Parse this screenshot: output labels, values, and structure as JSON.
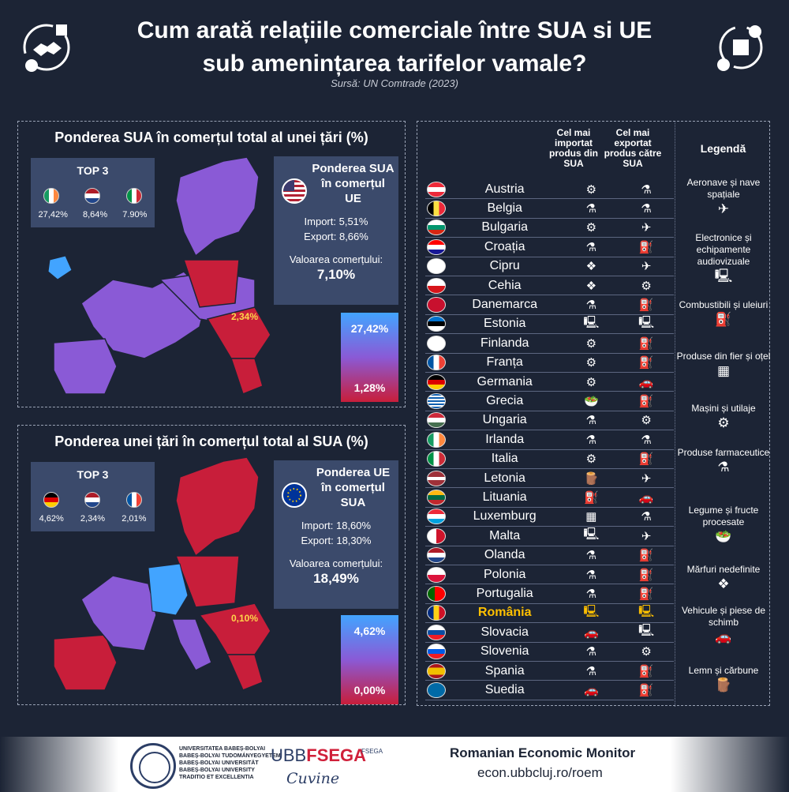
{
  "header": {
    "title_line1": "Cum arată relațiile comerciale  între SUA si UE",
    "title_line2": "sub amenințarea tarifelor vamale?",
    "source": "Sursă: UN Comtrade (2023)"
  },
  "panel1": {
    "title": "Ponderea SUA în comerțul total al unei țări (%)",
    "top3_title": "TOP 3",
    "top3": [
      {
        "country": "Irlanda",
        "value": "27,42%",
        "flag": "ie"
      },
      {
        "country": "Olanda",
        "value": "8,64%",
        "flag": "nl"
      },
      {
        "country": "Italia",
        "value": "7.90%",
        "flag": "it"
      }
    ],
    "box_title": "Ponderea SUA în comerțul UE",
    "import": "Import: 5,51%",
    "export": "Export: 8,66%",
    "trade_label": "Valoarea comerțului:",
    "trade_value": "7,10%",
    "scale_max": "27,42%",
    "scale_min": "1,28%",
    "map_label": "2,34%"
  },
  "panel2": {
    "title": "Ponderea unei țări în comerțul total al SUA (%)",
    "top3_title": "TOP 3",
    "top3": [
      {
        "country": "Germania",
        "value": "4,62%",
        "flag": "de"
      },
      {
        "country": "Olanda",
        "value": "2,34%",
        "flag": "nl"
      },
      {
        "country": "Franța",
        "value": "2,01%",
        "flag": "fr"
      }
    ],
    "box_title": "Ponderea UE în comerțul SUA",
    "import": "Import: 18,60%",
    "export": "Export: 18,30%",
    "trade_label": "Valoarea comerțului:",
    "trade_value": "18,49%",
    "scale_max": "4,62%",
    "scale_min": "0,00%",
    "map_label": "0,10%"
  },
  "table": {
    "col1_header": "Cel mai importat produs din SUA",
    "col2_header": "Cel mai exportat produs către SUA",
    "rows": [
      {
        "country": "Austria",
        "flag": "at",
        "import": "machinery",
        "export": "pharma"
      },
      {
        "country": "Belgia",
        "flag": "be",
        "import": "pharma",
        "export": "pharma"
      },
      {
        "country": "Bulgaria",
        "flag": "bg",
        "import": "machinery",
        "export": "aircraft"
      },
      {
        "country": "Croația",
        "flag": "hr",
        "import": "pharma",
        "export": "fuel"
      },
      {
        "country": "Cipru",
        "flag": "cy",
        "import": "undefined",
        "export": "aircraft"
      },
      {
        "country": "Cehia",
        "flag": "cz",
        "import": "undefined",
        "export": "machinery"
      },
      {
        "country": "Danemarca",
        "flag": "dk",
        "import": "pharma",
        "export": "fuel"
      },
      {
        "country": "Estonia",
        "flag": "ee",
        "import": "electronics",
        "export": "electronics"
      },
      {
        "country": "Finlanda",
        "flag": "fi",
        "import": "machinery",
        "export": "fuel"
      },
      {
        "country": "Franța",
        "flag": "fr",
        "import": "machinery",
        "export": "fuel"
      },
      {
        "country": "Germania",
        "flag": "de",
        "import": "machinery",
        "export": "vehicles"
      },
      {
        "country": "Grecia",
        "flag": "gr",
        "import": "food",
        "export": "fuel"
      },
      {
        "country": "Ungaria",
        "flag": "hu",
        "import": "pharma",
        "export": "machinery"
      },
      {
        "country": "Irlanda",
        "flag": "ie",
        "import": "pharma",
        "export": "pharma"
      },
      {
        "country": "Italia",
        "flag": "it",
        "import": "machinery",
        "export": "fuel"
      },
      {
        "country": "Letonia",
        "flag": "lv",
        "import": "wood",
        "export": "aircraft"
      },
      {
        "country": "Lituania",
        "flag": "lt",
        "import": "fuel",
        "export": "vehicles"
      },
      {
        "country": "Luxemburg",
        "flag": "lu",
        "import": "iron",
        "export": "pharma"
      },
      {
        "country": "Malta",
        "flag": "mt",
        "import": "electronics",
        "export": "aircraft"
      },
      {
        "country": "Olanda",
        "flag": "nl",
        "import": "pharma",
        "export": "fuel"
      },
      {
        "country": "Polonia",
        "flag": "pl",
        "import": "pharma",
        "export": "fuel"
      },
      {
        "country": "Portugalia",
        "flag": "pt",
        "import": "pharma",
        "export": "fuel"
      },
      {
        "country": "România",
        "flag": "ro",
        "import": "electronics",
        "export": "electronics"
      },
      {
        "country": "Slovacia",
        "flag": "sk",
        "import": "vehicles",
        "export": "electronics"
      },
      {
        "country": "Slovenia",
        "flag": "si",
        "import": "pharma",
        "export": "machinery"
      },
      {
        "country": "Spania",
        "flag": "es",
        "import": "pharma",
        "export": "fuel"
      },
      {
        "country": "Suedia",
        "flag": "se",
        "import": "vehicles",
        "export": "fuel"
      }
    ]
  },
  "legend": {
    "title": "Legendă",
    "items": [
      {
        "label": "Aeronave și nave spațiale",
        "icon": "aircraft"
      },
      {
        "label": "Electronice și echipamente audiovizuale",
        "icon": "electronics"
      },
      {
        "label": "Combustibili și uleiuri",
        "icon": "fuel"
      },
      {
        "label": "Produse din fier și oțel",
        "icon": "iron"
      },
      {
        "label": "Mașini și utilaje",
        "icon": "machinery"
      },
      {
        "label": "Produse farmaceutice",
        "icon": "pharma"
      },
      {
        "label": "Legume și fructe procesate",
        "icon": "food"
      },
      {
        "label": "Mărfuri nedefinite",
        "icon": "undefined"
      },
      {
        "label": "Vehicule și piese de schimb",
        "icon": "vehicles"
      },
      {
        "label": "Lemn și cărbune",
        "icon": "wood"
      }
    ]
  },
  "footer": {
    "univ_lines": [
      "UNIVERSITATEA BABEȘ-BOLYAI",
      "BABEȘ-BOLYAI TUDOMÁNYEGYETEM",
      "BABEȘ-BOLYAI UNIVERSITÄT",
      "BABEȘ-BOLYAI UNIVERSITY",
      "TRADITIO ET EXCELLENTIA"
    ],
    "fsega_a": "UBB",
    "fsega_b": "FSEGA",
    "fsega_sub": "FSEGA",
    "signature": "Cuvine",
    "remon": "Romanian Economic Monitor",
    "url": "econ.ubbcluj.ro/roem"
  },
  "colors": {
    "background": "#1c2435",
    "box": "#3b4a6b",
    "purple": "#8a5ad6",
    "red": "#c81e3a",
    "blue": "#42a4ff",
    "highlight": "#ffc000"
  }
}
